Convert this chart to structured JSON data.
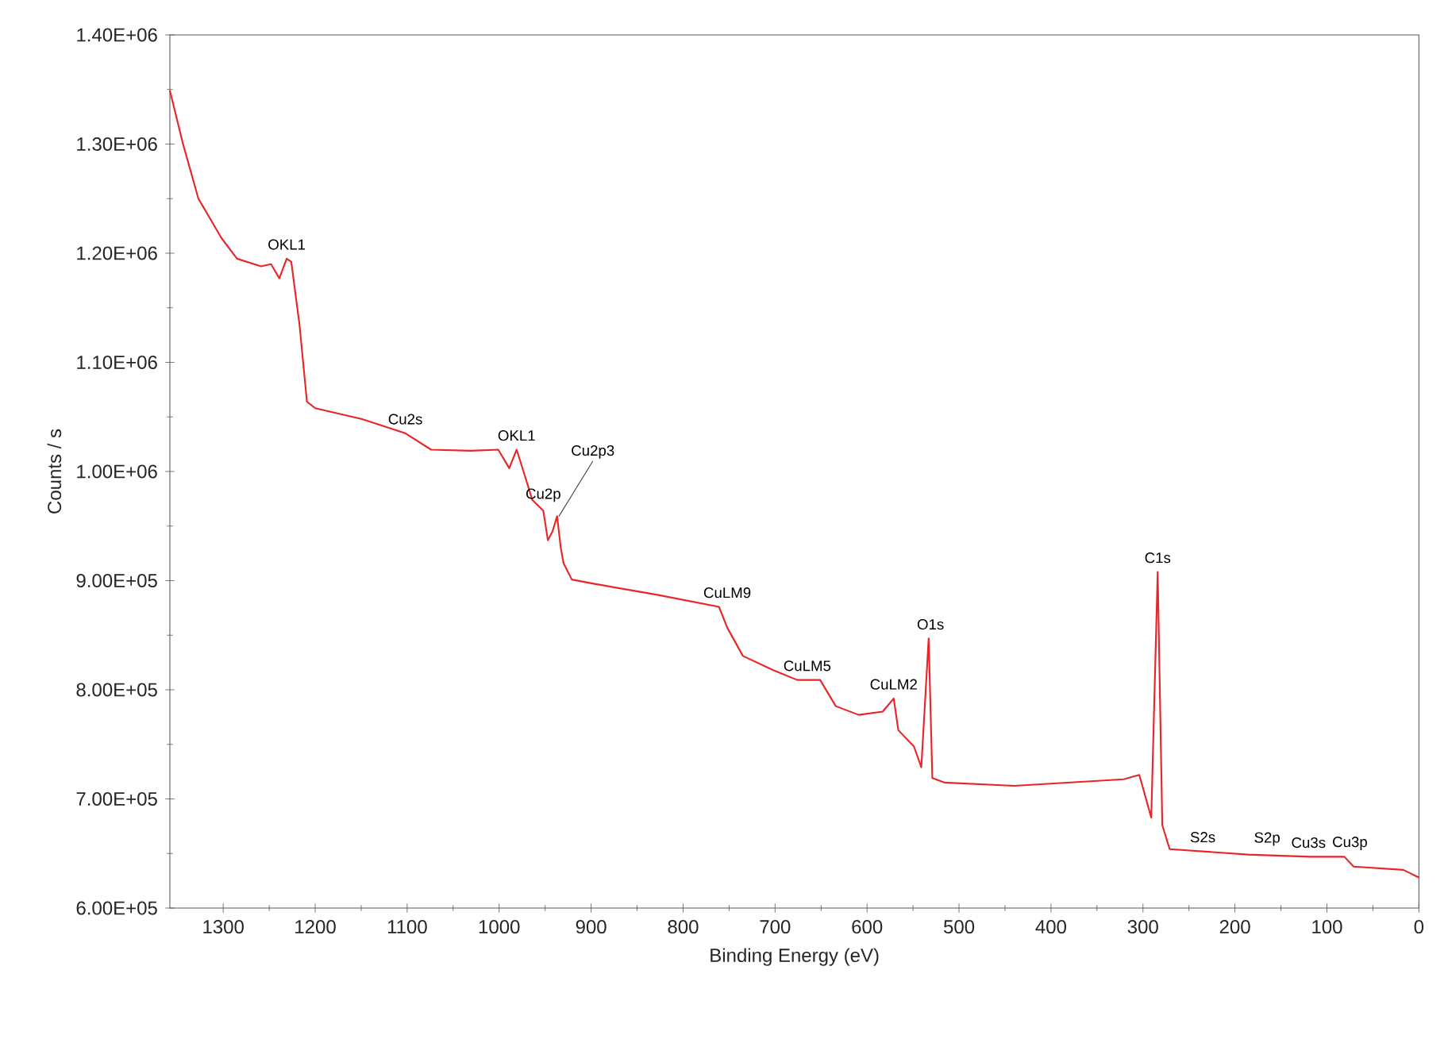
{
  "chart_data": {
    "type": "line",
    "xlabel": "Binding Energy (eV)",
    "ylabel": "Counts / s",
    "x": [
      1358,
      1344,
      1327,
      1302,
      1285,
      1259,
      1248,
      1239,
      1231,
      1226,
      1217,
      1209,
      1200,
      1149,
      1102,
      1074,
      1031,
      1001,
      989,
      981,
      972,
      964,
      952,
      947,
      942,
      937,
      933,
      930,
      921,
      896,
      828,
      761,
      752,
      735,
      702,
      676,
      651,
      634,
      609,
      583,
      571,
      566,
      549,
      541,
      533,
      529,
      516,
      440,
      321,
      304,
      291,
      284,
      279,
      271,
      186,
      118,
      81,
      71,
      17,
      0
    ],
    "series": [
      {
        "color": "#e8262a",
        "values": [
          1349000,
          1301000,
          1250000,
          1214000,
          1195000,
          1188000,
          1190000,
          1177000,
          1195000,
          1192000,
          1134000,
          1064000,
          1058000,
          1048000,
          1035000,
          1020000,
          1019000,
          1020000,
          1003000,
          1020000,
          996000,
          974000,
          964000,
          937000,
          945000,
          959000,
          930000,
          916000,
          901000,
          897000,
          887000,
          876000,
          857000,
          831000,
          818000,
          809000,
          809000,
          785000,
          777000,
          780000,
          792000,
          763000,
          748000,
          729000,
          847000,
          719000,
          715000,
          712000,
          718000,
          722000,
          683000,
          908000,
          676000,
          654000,
          649000,
          647000,
          647000,
          638000,
          635000,
          628000
        ]
      }
    ],
    "xlim": [
      1358,
      0
    ],
    "ylim": [
      600000,
      1400000
    ],
    "xticks": [
      1300,
      1200,
      1100,
      1000,
      900,
      800,
      700,
      600,
      500,
      400,
      300,
      200,
      100,
      0
    ],
    "yticks": [
      {
        "value": 600000,
        "label": "6.00E+05"
      },
      {
        "value": 700000,
        "label": "7.00E+05"
      },
      {
        "value": 800000,
        "label": "8.00E+05"
      },
      {
        "value": 900000,
        "label": "9.00E+05"
      },
      {
        "value": 1000000,
        "label": "1.00E+06"
      },
      {
        "value": 1100000,
        "label": "1.10E+06"
      },
      {
        "value": 1200000,
        "label": "1.20E+06"
      },
      {
        "value": 1300000,
        "label": "1.30E+06"
      },
      {
        "value": 1400000,
        "label": "1.40E+06"
      }
    ],
    "grid": false,
    "marker": "none",
    "line_style": "solid",
    "annotations": [
      {
        "text": "OKL1",
        "x": 1231,
        "y": 1195000
      },
      {
        "text": "Cu2s",
        "x": 1102,
        "y": 1035000
      },
      {
        "text": "OKL1",
        "x": 981,
        "y": 1020000
      },
      {
        "text": "Cu2p",
        "x": 952,
        "y": 964000
      },
      {
        "text": "Cu2p3",
        "x": 935,
        "y": 959000
      },
      {
        "text": "CuLM9",
        "x": 752,
        "y": 876000
      },
      {
        "text": "CuLM5",
        "x": 665,
        "y": 809000
      },
      {
        "text": "CuLM2",
        "x": 571,
        "y": 792000
      },
      {
        "text": "O1s",
        "x": 531,
        "y": 847000
      },
      {
        "text": "C1s",
        "x": 284,
        "y": 908000
      },
      {
        "text": "S2s",
        "x": 235,
        "y": 652000
      },
      {
        "text": "S2p",
        "x": 165,
        "y": 649000
      },
      {
        "text": "Cu3s",
        "x": 120,
        "y": 647000
      },
      {
        "text": "Cu3p",
        "x": 75,
        "y": 645000
      }
    ]
  }
}
